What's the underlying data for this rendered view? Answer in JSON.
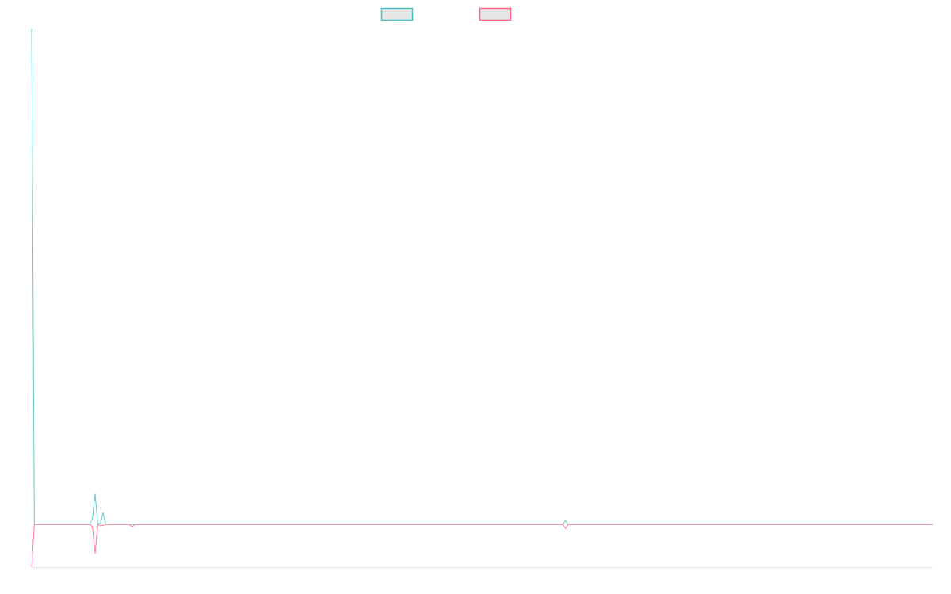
{
  "chart_data": {
    "type": "line",
    "title": "",
    "xlabel": "",
    "ylabel": "",
    "x_count": 342,
    "ylim": [
      -0.086,
      1.0
    ],
    "grid": false,
    "legend": "top",
    "default_value": 0,
    "series": [
      {
        "color": "#4bc0c0",
        "legend_fill": "#e5e5e5",
        "points": [
          [
            0,
            1.0
          ],
          [
            23,
            0.013
          ],
          [
            24,
            0.062
          ],
          [
            25,
            0.001
          ],
          [
            26,
            0.002
          ],
          [
            27,
            0.024
          ],
          [
            202,
            0.008
          ]
        ]
      },
      {
        "color": "#ff6384",
        "legend_fill": "#e5e5e5",
        "points": [
          [
            0,
            -0.086
          ],
          [
            23,
            -0.005
          ],
          [
            24,
            -0.059
          ],
          [
            25,
            0.0
          ],
          [
            26,
            -0.003
          ],
          [
            27,
            -0.002
          ],
          [
            38,
            -0.005
          ],
          [
            202,
            -0.008
          ]
        ]
      }
    ]
  }
}
